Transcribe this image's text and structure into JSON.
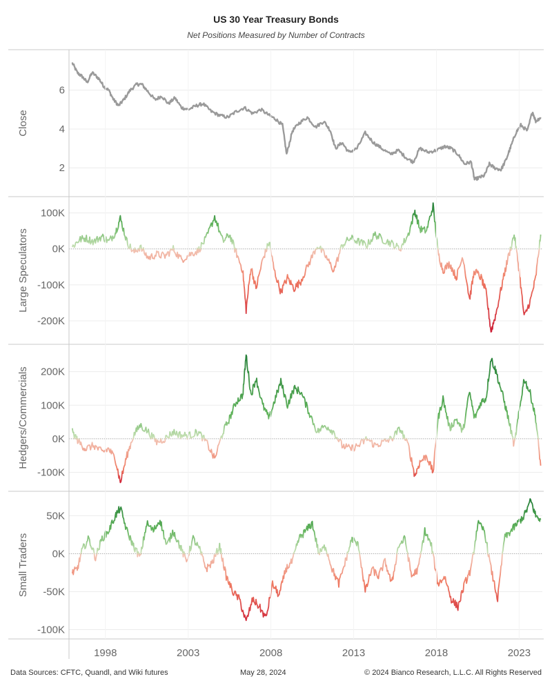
{
  "chart_data": {
    "type": "line",
    "title": "US 30 Year Treasury Bonds",
    "subtitle": "Net Positions Measured by Number of Contracts",
    "x_ticks": [
      1998,
      2003,
      2008,
      2013,
      2018,
      2023
    ],
    "x_range": [
      1995.8,
      2024.4
    ],
    "grid": true,
    "panels": [
      {
        "name": "Close",
        "ylabel": "Close",
        "y_ticks": [
          2,
          4,
          6
        ],
        "y_tick_labels": [
          "2",
          "4",
          "6"
        ],
        "ylim": [
          0.8,
          7.8
        ],
        "color": "#9a9a9a",
        "colored": false,
        "zero_line": false,
        "x": [
          1996.0,
          1996.3,
          1996.6,
          1996.9,
          1997.2,
          1997.6,
          1997.9,
          1998.2,
          1998.5,
          1998.8,
          1999.1,
          1999.5,
          1999.9,
          2000.2,
          2000.6,
          2001.0,
          2001.4,
          2001.8,
          2002.2,
          2002.6,
          2003.0,
          2003.5,
          2003.9,
          2004.4,
          2004.9,
          2005.4,
          2005.9,
          2006.4,
          2006.9,
          2007.4,
          2007.9,
          2008.3,
          2008.7,
          2008.95,
          2009.3,
          2009.7,
          2010.2,
          2010.7,
          2011.2,
          2011.6,
          2011.9,
          2012.3,
          2012.7,
          2013.2,
          2013.7,
          2014.2,
          2014.7,
          2015.2,
          2015.7,
          2016.2,
          2016.6,
          2017.0,
          2017.5,
          2018.0,
          2018.5,
          2018.9,
          2019.3,
          2019.7,
          2020.1,
          2020.3,
          2020.6,
          2020.9,
          2021.2,
          2021.5,
          2021.9,
          2022.2,
          2022.5,
          2022.8,
          2023.1,
          2023.5,
          2023.8,
          2024.0,
          2024.3
        ],
        "values": [
          7.4,
          6.9,
          6.7,
          6.4,
          6.9,
          6.6,
          6.2,
          6.0,
          5.5,
          5.2,
          5.5,
          6.0,
          6.3,
          6.3,
          5.9,
          5.5,
          5.7,
          5.3,
          5.6,
          5.1,
          5.0,
          5.2,
          5.3,
          4.9,
          4.7,
          4.6,
          4.9,
          5.1,
          4.8,
          5.0,
          4.7,
          4.5,
          4.2,
          2.7,
          3.9,
          4.3,
          4.6,
          4.1,
          4.4,
          3.9,
          3.0,
          3.3,
          2.8,
          3.0,
          3.8,
          3.3,
          3.0,
          2.7,
          2.9,
          2.5,
          2.3,
          3.0,
          2.8,
          2.9,
          3.1,
          3.0,
          2.7,
          2.2,
          2.3,
          1.4,
          1.5,
          1.6,
          2.2,
          2.0,
          1.9,
          2.4,
          3.1,
          3.8,
          4.2,
          3.9,
          4.9,
          4.4,
          4.6
        ]
      },
      {
        "name": "Large Speculators",
        "ylabel": "Large Speculators",
        "y_ticks": [
          100000,
          0,
          -100000,
          -200000
        ],
        "y_tick_labels": [
          "100K",
          "0K",
          "-100K",
          "-200K"
        ],
        "ylim": [
          -250000,
          130000
        ],
        "colored": true,
        "zero_line": true,
        "x": [
          1996.0,
          1996.4,
          1996.8,
          1997.3,
          1997.8,
          1998.2,
          1998.6,
          1998.9,
          1999.3,
          1999.7,
          2000.1,
          2000.6,
          2001.1,
          2001.6,
          2002.1,
          2002.6,
          2003.1,
          2003.6,
          2004.1,
          2004.6,
          2005.1,
          2005.5,
          2005.9,
          2006.3,
          2006.5,
          2006.8,
          2007.1,
          2007.5,
          2007.9,
          2008.2,
          2008.6,
          2009.0,
          2009.4,
          2009.8,
          2010.3,
          2010.8,
          2011.3,
          2011.8,
          2012.3,
          2012.8,
          2013.3,
          2013.8,
          2014.3,
          2014.8,
          2015.3,
          2015.8,
          2016.3,
          2016.7,
          2017.0,
          2017.4,
          2017.8,
          2018.1,
          2018.4,
          2018.8,
          2019.2,
          2019.6,
          2020.0,
          2020.3,
          2020.7,
          2021.0,
          2021.3,
          2021.6,
          2022.0,
          2022.3,
          2022.7,
          2023.0,
          2023.3,
          2023.7,
          2024.0,
          2024.3
        ],
        "values": [
          5000,
          25000,
          30000,
          20000,
          35000,
          20000,
          45000,
          85000,
          20000,
          -10000,
          5000,
          -25000,
          -15000,
          -20000,
          0,
          -30000,
          -15000,
          -5000,
          30000,
          90000,
          20000,
          40000,
          -10000,
          -60000,
          -170000,
          -50000,
          -110000,
          -30000,
          20000,
          -60000,
          -120000,
          -80000,
          -110000,
          -90000,
          -40000,
          10000,
          -20000,
          -60000,
          10000,
          30000,
          20000,
          10000,
          40000,
          25000,
          15000,
          0,
          40000,
          105000,
          55000,
          50000,
          120000,
          -10000,
          -60000,
          -40000,
          -80000,
          -20000,
          -140000,
          -60000,
          -80000,
          -120000,
          -230000,
          -180000,
          -90000,
          -30000,
          40000,
          -60000,
          -190000,
          -140000,
          -80000,
          40000
        ]
      },
      {
        "name": "Hedgers/Commercials",
        "ylabel": "Hedgers/Commercials",
        "y_ticks": [
          200000,
          100000,
          0,
          -100000
        ],
        "y_tick_labels": [
          "200K",
          "100K",
          "0K",
          "-100K"
        ],
        "ylim": [
          -140000,
          265000
        ],
        "colored": true,
        "zero_line": true,
        "x": [
          1996.0,
          1996.4,
          1996.8,
          1997.3,
          1997.8,
          1998.2,
          1998.6,
          1998.9,
          1999.3,
          1999.7,
          2000.1,
          2000.6,
          2001.1,
          2001.6,
          2002.1,
          2002.6,
          2003.1,
          2003.6,
          2004.1,
          2004.6,
          2005.1,
          2005.5,
          2005.9,
          2006.3,
          2006.5,
          2006.8,
          2007.1,
          2007.5,
          2007.9,
          2008.2,
          2008.6,
          2009.0,
          2009.4,
          2009.8,
          2010.3,
          2010.8,
          2011.3,
          2011.8,
          2012.3,
          2012.8,
          2013.3,
          2013.8,
          2014.3,
          2014.8,
          2015.3,
          2015.8,
          2016.3,
          2016.7,
          2017.0,
          2017.4,
          2017.8,
          2018.1,
          2018.4,
          2018.8,
          2019.2,
          2019.6,
          2020.0,
          2020.3,
          2020.7,
          2021.0,
          2021.3,
          2021.6,
          2022.0,
          2022.3,
          2022.7,
          2023.0,
          2023.3,
          2023.7,
          2024.0,
          2024.3
        ],
        "values": [
          20000,
          -10000,
          -30000,
          -20000,
          -40000,
          -30000,
          -60000,
          -130000,
          -50000,
          10000,
          40000,
          20000,
          -10000,
          0,
          20000,
          10000,
          10000,
          20000,
          -10000,
          -60000,
          20000,
          60000,
          110000,
          130000,
          250000,
          130000,
          180000,
          100000,
          60000,
          110000,
          170000,
          100000,
          150000,
          140000,
          80000,
          20000,
          40000,
          20000,
          -20000,
          -30000,
          -20000,
          0,
          -20000,
          -10000,
          0,
          30000,
          -20000,
          -110000,
          -70000,
          -50000,
          -100000,
          60000,
          120000,
          30000,
          60000,
          20000,
          140000,
          60000,
          110000,
          120000,
          240000,
          200000,
          130000,
          70000,
          -20000,
          80000,
          180000,
          130000,
          60000,
          -80000
        ]
      },
      {
        "name": "Small Traders",
        "ylabel": "Small Traders",
        "y_ticks": [
          50000,
          0,
          -50000,
          -100000
        ],
        "y_tick_labels": [
          "50K",
          "0K",
          "-50K",
          "-100K"
        ],
        "ylim": [
          -105000,
          75000
        ],
        "colored": true,
        "zero_line": true,
        "x": [
          1996.0,
          1996.3,
          1996.6,
          1997.0,
          1997.4,
          1997.8,
          1998.2,
          1998.6,
          1998.9,
          1999.3,
          1999.7,
          2000.1,
          2000.5,
          2000.9,
          2001.3,
          2001.7,
          2002.1,
          2002.5,
          2002.9,
          2003.3,
          2003.7,
          2004.1,
          2004.5,
          2004.9,
          2005.3,
          2005.7,
          2006.1,
          2006.5,
          2006.9,
          2007.3,
          2007.7,
          2008.1,
          2008.5,
          2008.9,
          2009.3,
          2009.7,
          2010.1,
          2010.5,
          2010.9,
          2011.3,
          2011.7,
          2012.1,
          2012.5,
          2012.9,
          2013.3,
          2013.7,
          2014.1,
          2014.5,
          2014.9,
          2015.3,
          2015.7,
          2016.1,
          2016.5,
          2016.9,
          2017.3,
          2017.7,
          2018.1,
          2018.5,
          2018.9,
          2019.3,
          2019.7,
          2020.1,
          2020.5,
          2020.9,
          2021.3,
          2021.7,
          2022.1,
          2022.5,
          2022.9,
          2023.3,
          2023.7,
          2024.0,
          2024.3
        ],
        "values": [
          -25000,
          -20000,
          5000,
          20000,
          -5000,
          20000,
          30000,
          50000,
          60000,
          30000,
          10000,
          -5000,
          40000,
          30000,
          45000,
          10000,
          30000,
          10000,
          -10000,
          20000,
          5000,
          -20000,
          -10000,
          10000,
          -30000,
          -50000,
          -60000,
          -90000,
          -60000,
          -70000,
          -85000,
          -40000,
          -55000,
          -20000,
          -10000,
          20000,
          30000,
          40000,
          0,
          10000,
          -20000,
          -40000,
          -10000,
          20000,
          10000,
          -50000,
          -20000,
          -30000,
          -10000,
          -40000,
          10000,
          20000,
          -30000,
          -20000,
          30000,
          10000,
          -40000,
          -30000,
          -60000,
          -70000,
          -40000,
          -20000,
          40000,
          30000,
          -20000,
          -60000,
          20000,
          30000,
          40000,
          50000,
          70000,
          50000,
          45000
        ]
      }
    ]
  },
  "footer": {
    "sources": "Data Sources: CFTC, Quandl, and Wiki futures",
    "date": "May 28, 2024",
    "copyright": "© 2024 Bianco Research, L.L.C. All Rights Reserved"
  }
}
